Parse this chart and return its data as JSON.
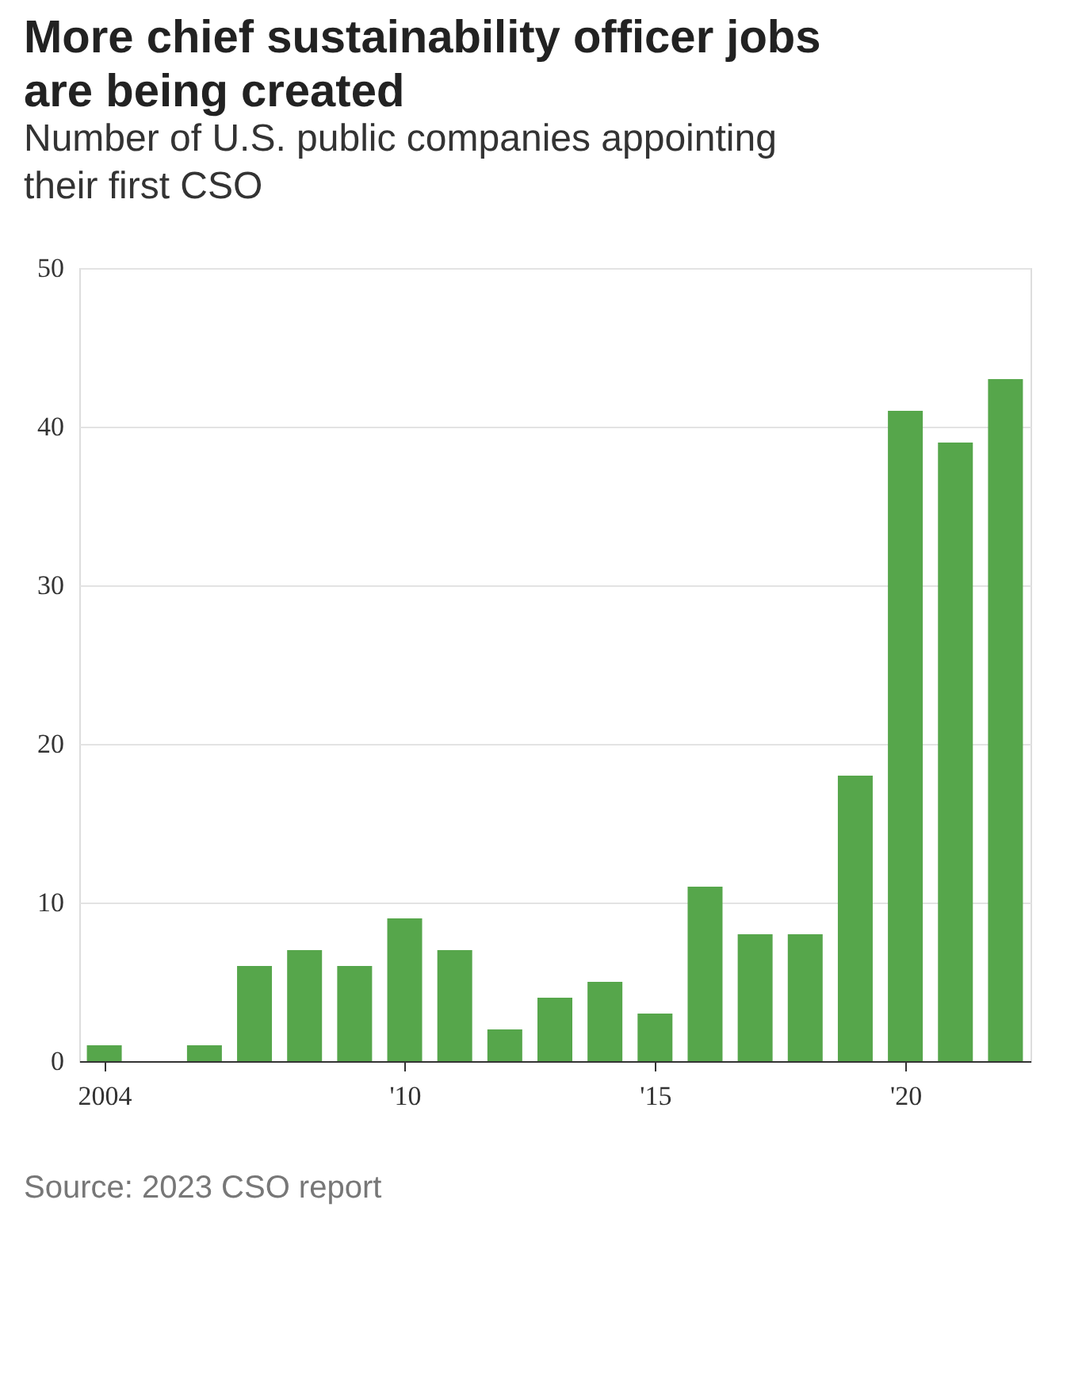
{
  "chart_data": {
    "type": "bar",
    "title": "More chief sustainability officer jobs are being created",
    "subtitle": "Number of U.S. public companies appointing their first CSO",
    "x": [
      2004,
      2005,
      2006,
      2007,
      2008,
      2009,
      2010,
      2011,
      2012,
      2013,
      2014,
      2015,
      2016,
      2017,
      2018,
      2019,
      2020,
      2021,
      2022
    ],
    "values": [
      1,
      0,
      1,
      6,
      7,
      6,
      9,
      7,
      2,
      4,
      5,
      3,
      11,
      8,
      8,
      18,
      41,
      39,
      43
    ],
    "color": "#56a64b",
    "xlim": [
      2003.5,
      2022.5
    ],
    "xticks": [
      {
        "value": 2004,
        "label": "2004"
      },
      {
        "value": 2010,
        "label": "'10"
      },
      {
        "value": 2015,
        "label": "'15"
      },
      {
        "value": 2020,
        "label": "'20"
      }
    ],
    "ylim": [
      0,
      50
    ],
    "yticks": [
      0,
      10,
      20,
      30,
      40,
      50
    ],
    "grid": "y",
    "annotations": [
      "Source: 2023 CSO report"
    ]
  }
}
